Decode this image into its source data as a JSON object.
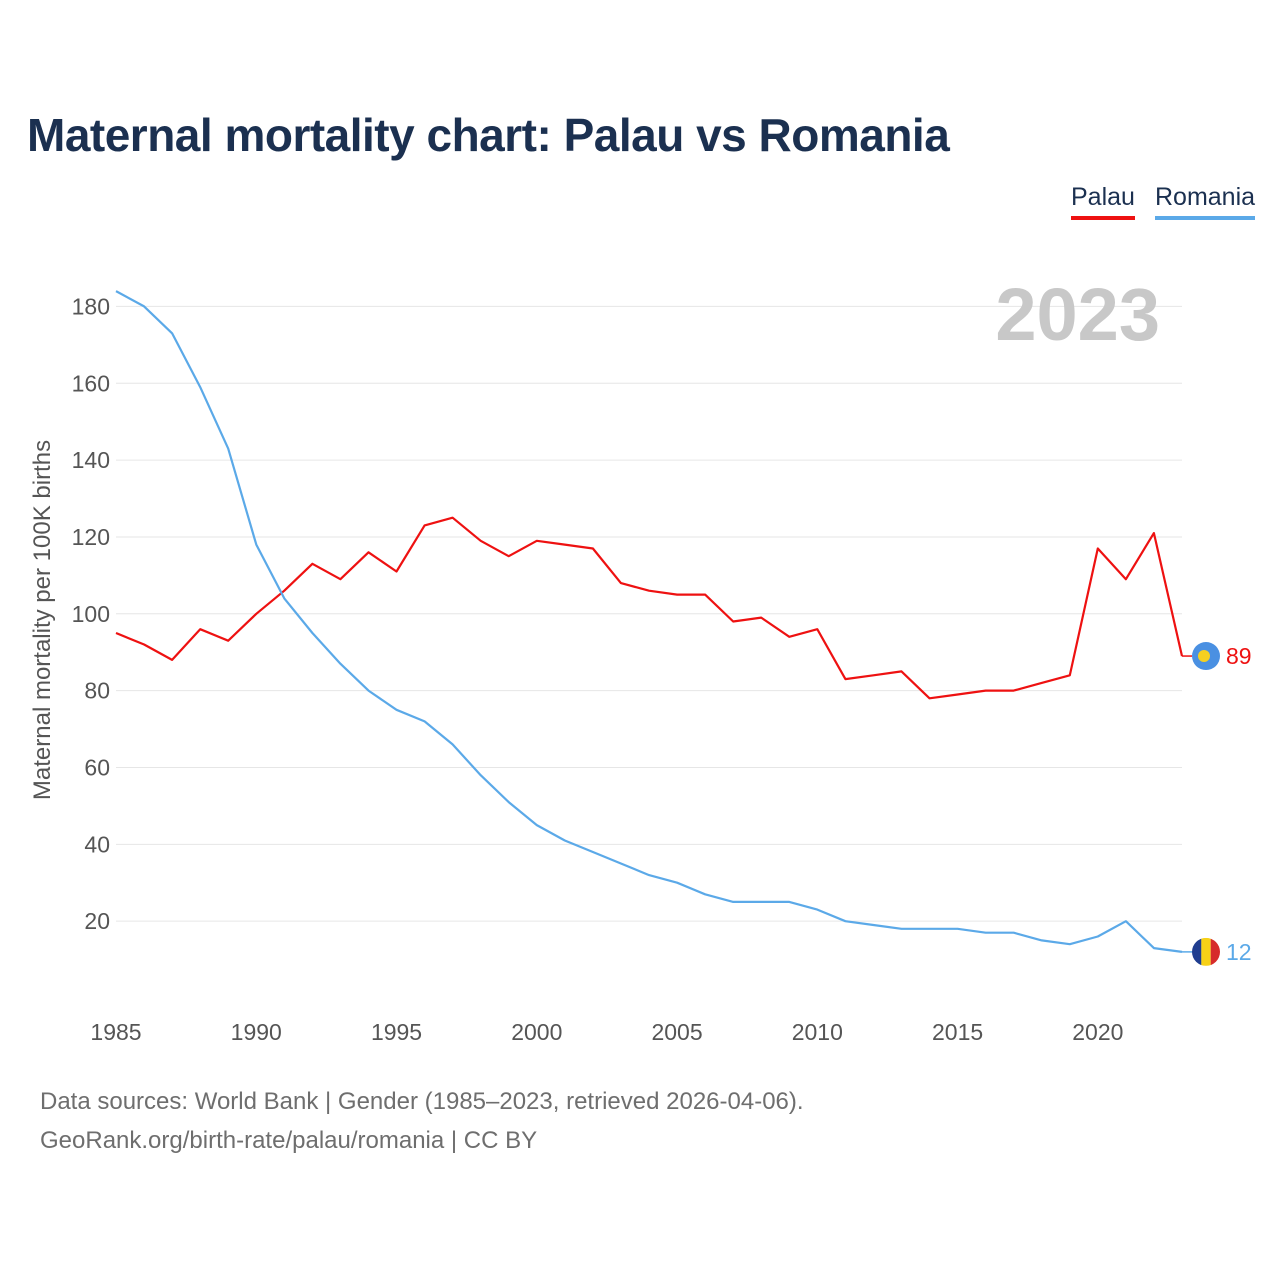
{
  "title": "Maternal mortality chart: Palau vs Romania",
  "legend": [
    {
      "name": "Palau",
      "color": "#ee1111"
    },
    {
      "name": "Romania",
      "color": "#5ba9e8"
    }
  ],
  "year_badge": "2023",
  "source": {
    "line1": "Data sources: World Bank | Gender (1985–2023, retrieved 2026-04-06).",
    "line2": "GeoRank.org/birth-rate/palau/romania | CC BY"
  },
  "chart_data": {
    "type": "line",
    "title": "Maternal mortality chart: Palau vs Romania",
    "xlabel": "",
    "ylabel": "Maternal mortality per 100K births",
    "xlim": [
      1985,
      2023
    ],
    "ylim": [
      0,
      190
    ],
    "x_ticks": [
      1985,
      1990,
      1995,
      2000,
      2005,
      2010,
      2015,
      2020
    ],
    "y_ticks": [
      20,
      40,
      60,
      80,
      100,
      120,
      140,
      160,
      180
    ],
    "grid": true,
    "legend_position": "top-right",
    "x": [
      1985,
      1986,
      1987,
      1988,
      1989,
      1990,
      1991,
      1992,
      1993,
      1994,
      1995,
      1996,
      1997,
      1998,
      1999,
      2000,
      2001,
      2002,
      2003,
      2004,
      2005,
      2006,
      2007,
      2008,
      2009,
      2010,
      2011,
      2012,
      2013,
      2014,
      2015,
      2016,
      2017,
      2018,
      2019,
      2020,
      2021,
      2022,
      2023
    ],
    "series": [
      {
        "name": "Palau",
        "color": "#ee1111",
        "end_label": "89",
        "values": [
          95,
          92,
          88,
          96,
          93,
          100,
          106,
          113,
          109,
          116,
          111,
          123,
          125,
          119,
          115,
          119,
          118,
          117,
          108,
          106,
          105,
          105,
          98,
          99,
          94,
          96,
          83,
          84,
          85,
          78,
          79,
          80,
          80,
          82,
          84,
          117,
          109,
          121,
          89
        ]
      },
      {
        "name": "Romania",
        "color": "#5ba9e8",
        "end_label": "12",
        "values": [
          184,
          180,
          173,
          159,
          143,
          118,
          104,
          95,
          87,
          80,
          75,
          72,
          66,
          58,
          51,
          45,
          41,
          38,
          35,
          32,
          30,
          27,
          25,
          25,
          25,
          23,
          20,
          19,
          18,
          18,
          18,
          17,
          17,
          15,
          14,
          16,
          20,
          13,
          12
        ]
      }
    ]
  }
}
